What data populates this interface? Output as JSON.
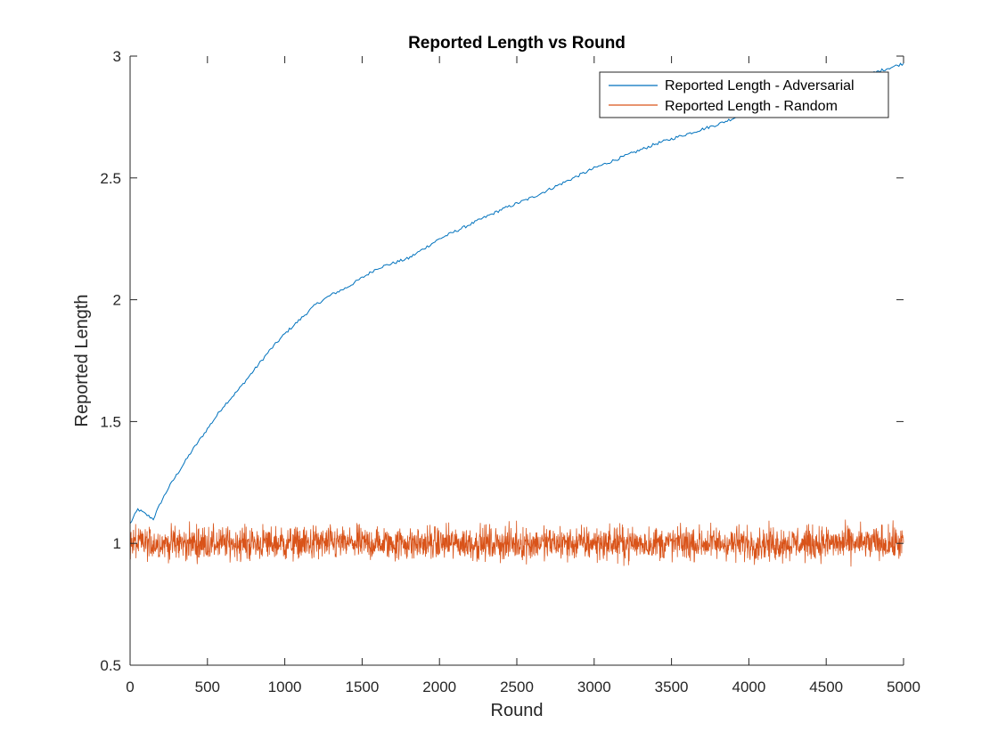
{
  "chart_data": {
    "type": "line",
    "title": "Reported Length vs Round",
    "xlabel": "Round",
    "ylabel": "Reported Length",
    "xlim": [
      0,
      5000
    ],
    "ylim": [
      0.5,
      3
    ],
    "xticks": [
      0,
      500,
      1000,
      1500,
      2000,
      2500,
      3000,
      3500,
      4000,
      4500,
      5000
    ],
    "yticks": [
      0.5,
      1,
      1.5,
      2,
      2.5,
      3
    ],
    "xtick_labels": [
      "0",
      "500",
      "1000",
      "1500",
      "2000",
      "2500",
      "3000",
      "3500",
      "4000",
      "4500",
      "5000"
    ],
    "ytick_labels": [
      "0.5",
      "1",
      "1.5",
      "2",
      "2.5",
      "3"
    ],
    "grid": false,
    "legend_position": "top-right",
    "series": [
      {
        "name": "Reported Length - Adversarial",
        "color": "#0072BD",
        "x": [
          0,
          50,
          100,
          150,
          200,
          250,
          300,
          400,
          500,
          600,
          700,
          800,
          900,
          1000,
          1100,
          1200,
          1300,
          1400,
          1500,
          1600,
          1700,
          1800,
          1900,
          2000,
          2200,
          2400,
          2600,
          2800,
          3000,
          3200,
          3400,
          3600,
          3800,
          4000,
          4200,
          4400,
          4600,
          4800,
          5000
        ],
        "values": [
          1.08,
          1.14,
          1.12,
          1.1,
          1.17,
          1.23,
          1.28,
          1.38,
          1.47,
          1.56,
          1.63,
          1.71,
          1.79,
          1.86,
          1.92,
          1.98,
          2.02,
          2.05,
          2.09,
          2.13,
          2.15,
          2.17,
          2.21,
          2.25,
          2.31,
          2.37,
          2.42,
          2.48,
          2.54,
          2.59,
          2.64,
          2.68,
          2.72,
          2.77,
          2.8,
          2.84,
          2.88,
          2.93,
          2.97
        ]
      },
      {
        "name": "Reported Length - Random",
        "color": "#D95319",
        "x": [
          0,
          5000
        ],
        "values": [
          1.0,
          1.0
        ],
        "noise_amplitude": 0.06
      }
    ]
  }
}
